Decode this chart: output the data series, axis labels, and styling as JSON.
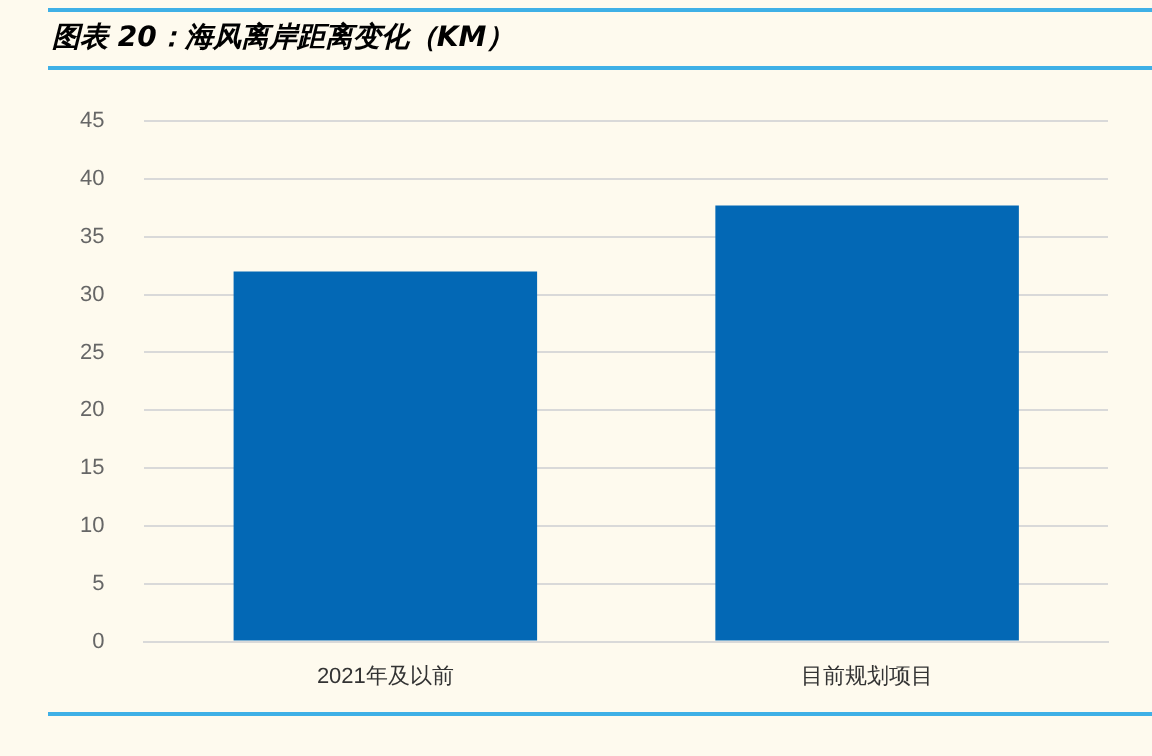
{
  "chart_data": {
    "type": "bar",
    "title": "图表 20：海风离岸距离变化（KM）",
    "categories": [
      "2021年及以前",
      "目前规划项目"
    ],
    "values": [
      32,
      37.7
    ],
    "color": "#0368b5",
    "ylim": [
      0,
      45
    ],
    "yticks": [
      0,
      5,
      10,
      15,
      20,
      25,
      30,
      35,
      40,
      45
    ],
    "grid": "y",
    "legend": false
  }
}
